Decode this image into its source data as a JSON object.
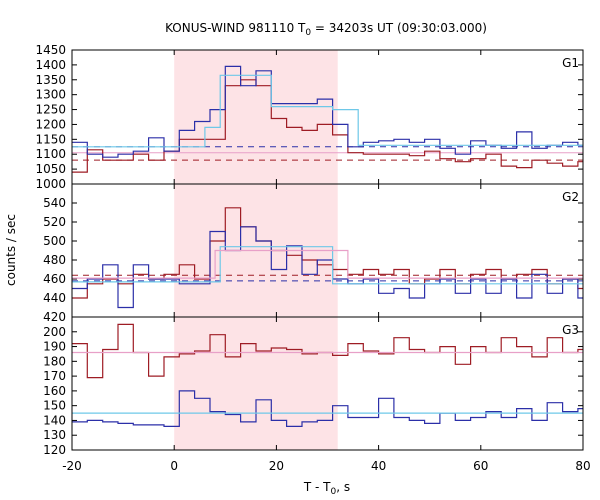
{
  "chart_data": {
    "type": "line",
    "title_main": "KONUS-WIND 981110 T",
    "title_sub": "0",
    "title_rest": " = 34203s UT (09:30:03.000)",
    "xlabel_main": "T - T",
    "xlabel_sub": "0",
    "xlabel_rest": ", s",
    "ylabel": "counts / sec",
    "xlim": [
      -20,
      80
    ],
    "xticks": [
      -20,
      0,
      20,
      40,
      60,
      80
    ],
    "highlight": {
      "x0": 0,
      "x1": 32,
      "color": "#fde3e6"
    },
    "colors": {
      "red": "#9e1c24",
      "blue": "#2b2fa8",
      "lightblue": "#6ec8e8",
      "pink": "#e8a0c8"
    },
    "panels": [
      {
        "name": "G1",
        "ylim": [
          1000,
          1450
        ],
        "yticks": [
          1000,
          1050,
          1100,
          1150,
          1200,
          1250,
          1300,
          1350,
          1400,
          1450
        ],
        "step_series": [
          {
            "color": "red",
            "x": [
              -20,
              -17,
              -14,
              -11,
              -8,
              -5,
              -2,
              1,
              4,
              7,
              10,
              13,
              16,
              19,
              22,
              25,
              28,
              31,
              34,
              37,
              40,
              43,
              46,
              49,
              52,
              55,
              58,
              61,
              64,
              67,
              70,
              73,
              76,
              79
            ],
            "y": [
              1040,
              1115,
              1080,
              1080,
              1100,
              1080,
              1110,
              1150,
              1150,
              1150,
              1330,
              1350,
              1330,
              1220,
              1190,
              1180,
              1200,
              1165,
              1105,
              1100,
              1100,
              1100,
              1095,
              1110,
              1085,
              1075,
              1085,
              1100,
              1060,
              1055,
              1080,
              1070,
              1060,
              1075
            ]
          },
          {
            "color": "blue",
            "x": [
              -20,
              -17,
              -14,
              -11,
              -8,
              -5,
              -2,
              1,
              4,
              7,
              10,
              13,
              16,
              19,
              22,
              25,
              28,
              31,
              34,
              37,
              40,
              43,
              46,
              49,
              52,
              55,
              58,
              61,
              64,
              67,
              70,
              73,
              76,
              79
            ],
            "y": [
              1140,
              1100,
              1090,
              1100,
              1110,
              1155,
              1110,
              1180,
              1210,
              1250,
              1395,
              1330,
              1380,
              1270,
              1270,
              1270,
              1285,
              1200,
              1125,
              1140,
              1145,
              1150,
              1140,
              1150,
              1120,
              1100,
              1145,
              1130,
              1120,
              1175,
              1120,
              1130,
              1140,
              1130
            ]
          },
          {
            "color": "lightblue",
            "x": [
              -20,
              0,
              6,
              9,
              13,
              19,
              31,
              36,
              80
            ],
            "y": [
              1125,
              1125,
              1190,
              1365,
              1365,
              1260,
              1250,
              1130,
              1130
            ]
          }
        ],
        "flat_lines": [
          {
            "color": "red",
            "y": 1080,
            "style": "dashed"
          },
          {
            "color": "blue",
            "y": 1125,
            "style": "dashed"
          },
          {
            "color": "pink",
            "y": 1105,
            "style": "solid"
          }
        ]
      },
      {
        "name": "G2",
        "ylim": [
          420,
          560
        ],
        "yticks": [
          420,
          440,
          460,
          480,
          500,
          520,
          540
        ],
        "step_series": [
          {
            "color": "red",
            "x": [
              -20,
              -17,
              -14,
              -11,
              -8,
              -5,
              -2,
              1,
              4,
              7,
              10,
              13,
              16,
              19,
              22,
              25,
              28,
              31,
              34,
              37,
              40,
              43,
              46,
              49,
              52,
              55,
              58,
              61,
              64,
              67,
              70,
              73,
              76,
              79
            ],
            "y": [
              440,
              455,
              460,
              455,
              465,
              460,
              465,
              475,
              460,
              500,
              535,
              515,
              500,
              490,
              485,
              480,
              475,
              470,
              465,
              470,
              465,
              470,
              455,
              460,
              470,
              455,
              465,
              470,
              460,
              465,
              470,
              455,
              460,
              450
            ]
          },
          {
            "color": "blue",
            "x": [
              -20,
              -17,
              -14,
              -11,
              -8,
              -5,
              -2,
              1,
              4,
              7,
              10,
              13,
              16,
              19,
              22,
              25,
              28,
              31,
              34,
              37,
              40,
              43,
              46,
              49,
              52,
              55,
              58,
              61,
              64,
              67,
              70,
              73,
              76,
              79
            ],
            "y": [
              450,
              460,
              475,
              430,
              475,
              460,
              460,
              455,
              455,
              510,
              490,
              515,
              500,
              470,
              495,
              465,
              480,
              460,
              455,
              460,
              445,
              450,
              440,
              455,
              460,
              445,
              460,
              445,
              460,
              440,
              465,
              445,
              460,
              440
            ]
          },
          {
            "color": "lightblue",
            "x": [
              -20,
              0,
              6,
              9,
              20,
              31,
              80
            ],
            "y": [
              457,
              457,
              457,
              494,
              494,
              455,
              455
            ]
          },
          {
            "color": "pink",
            "x": [
              -20,
              0,
              6,
              8,
              32,
              34,
              80
            ],
            "y": [
              461,
              461,
              461,
              490,
              490,
              461,
              461
            ]
          }
        ],
        "flat_lines": [
          {
            "color": "red",
            "y": 464,
            "style": "dashed"
          },
          {
            "color": "blue",
            "y": 458,
            "style": "dashed"
          }
        ]
      },
      {
        "name": "G3",
        "ylim": [
          120,
          210
        ],
        "yticks": [
          120,
          130,
          140,
          150,
          160,
          170,
          180,
          190,
          200
        ],
        "step_series": [
          {
            "color": "red",
            "x": [
              -20,
              -17,
              -14,
              -11,
              -8,
              -5,
              -2,
              1,
              4,
              7,
              10,
              13,
              16,
              19,
              22,
              25,
              28,
              31,
              34,
              37,
              40,
              43,
              46,
              49,
              52,
              55,
              58,
              61,
              64,
              67,
              70,
              73,
              76,
              79
            ],
            "y": [
              192,
              169,
              188,
              205,
              186,
              170,
              183,
              185,
              187,
              198,
              183,
              192,
              187,
              189,
              188,
              185,
              186,
              184,
              192,
              187,
              185,
              196,
              188,
              186,
              190,
              178,
              190,
              186,
              196,
              190,
              183,
              196,
              186,
              188
            ]
          },
          {
            "color": "blue",
            "x": [
              -20,
              -17,
              -14,
              -11,
              -8,
              -5,
              -2,
              1,
              4,
              7,
              10,
              13,
              16,
              19,
              22,
              25,
              28,
              31,
              34,
              37,
              40,
              43,
              46,
              49,
              52,
              55,
              58,
              61,
              64,
              67,
              70,
              73,
              76,
              79
            ],
            "y": [
              139,
              140,
              139,
              138,
              137,
              137,
              136,
              160,
              155,
              146,
              144,
              139,
              154,
              140,
              136,
              139,
              140,
              150,
              142,
              142,
              155,
              142,
              140,
              138,
              145,
              140,
              142,
              146,
              142,
              148,
              140,
              152,
              146,
              148
            ]
          },
          {
            "color": "lightblue",
            "x": [
              -20,
              80
            ],
            "y": [
              145,
              145
            ]
          },
          {
            "color": "pink",
            "x": [
              -20,
              80
            ],
            "y": [
              186,
              186
            ]
          }
        ],
        "flat_lines": []
      }
    ]
  }
}
